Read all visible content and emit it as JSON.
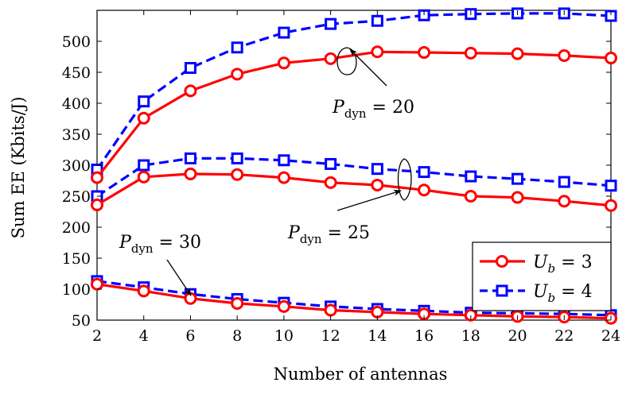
{
  "chart_data": {
    "type": "line",
    "xlabel": "Number of antennas",
    "ylabel": "Sum EE (Kbits/J)",
    "xlim": [
      2,
      24
    ],
    "ylim": [
      50,
      550
    ],
    "x_ticks": [
      2,
      4,
      6,
      8,
      10,
      12,
      14,
      16,
      18,
      20,
      22,
      24
    ],
    "y_ticks": [
      50,
      100,
      150,
      200,
      250,
      300,
      350,
      400,
      450,
      500
    ],
    "x": [
      2,
      4,
      6,
      8,
      10,
      12,
      14,
      16,
      18,
      20,
      22,
      24
    ],
    "legend": {
      "position": "bottom-right",
      "entries": [
        {
          "label_main": "U",
          "label_sub": "b",
          "label_rest": " = 3",
          "color": "#ff0000",
          "style": "solid",
          "marker": "circle"
        },
        {
          "label_main": "U",
          "label_sub": "b",
          "label_rest": " = 4",
          "color": "#0000ff",
          "style": "dashed",
          "marker": "square"
        }
      ]
    },
    "annotations": [
      {
        "main": "P",
        "sub": "dyn",
        "rest": " = 20"
      },
      {
        "main": "P",
        "sub": "dyn",
        "rest": " = 25"
      },
      {
        "main": "P",
        "sub": "dyn",
        "rest": " = 30"
      }
    ],
    "series": [
      {
        "group": "Pdyn=20",
        "legend_index": 1,
        "color": "#0000ff",
        "style": "dashed",
        "marker": "square",
        "values": [
          293,
          403,
          457,
          490,
          514,
          528,
          533,
          542,
          544,
          545,
          545,
          541
        ]
      },
      {
        "group": "Pdyn=20",
        "legend_index": 0,
        "color": "#ff0000",
        "style": "solid",
        "marker": "circle",
        "values": [
          280,
          376,
          420,
          447,
          465,
          472,
          483,
          482,
          481,
          480,
          477,
          473
        ]
      },
      {
        "group": "Pdyn=25",
        "legend_index": 1,
        "color": "#0000ff",
        "style": "dashed",
        "marker": "square",
        "values": [
          250,
          300,
          311,
          311,
          308,
          302,
          294,
          289,
          282,
          278,
          273,
          267
        ]
      },
      {
        "group": "Pdyn=25",
        "legend_index": 0,
        "color": "#ff0000",
        "style": "solid",
        "marker": "circle",
        "values": [
          236,
          281,
          286,
          285,
          280,
          272,
          268,
          260,
          250,
          248,
          242,
          235
        ]
      },
      {
        "group": "Pdyn=30",
        "legend_index": 1,
        "color": "#0000ff",
        "style": "dashed",
        "marker": "square",
        "values": [
          113,
          103,
          92,
          84,
          78,
          72,
          68,
          65,
          62,
          61,
          60,
          58
        ]
      },
      {
        "group": "Pdyn=30",
        "legend_index": 0,
        "color": "#ff0000",
        "style": "solid",
        "marker": "circle",
        "values": [
          108,
          97,
          85,
          77,
          72,
          66,
          63,
          60,
          58,
          56,
          55,
          53
        ]
      }
    ]
  }
}
